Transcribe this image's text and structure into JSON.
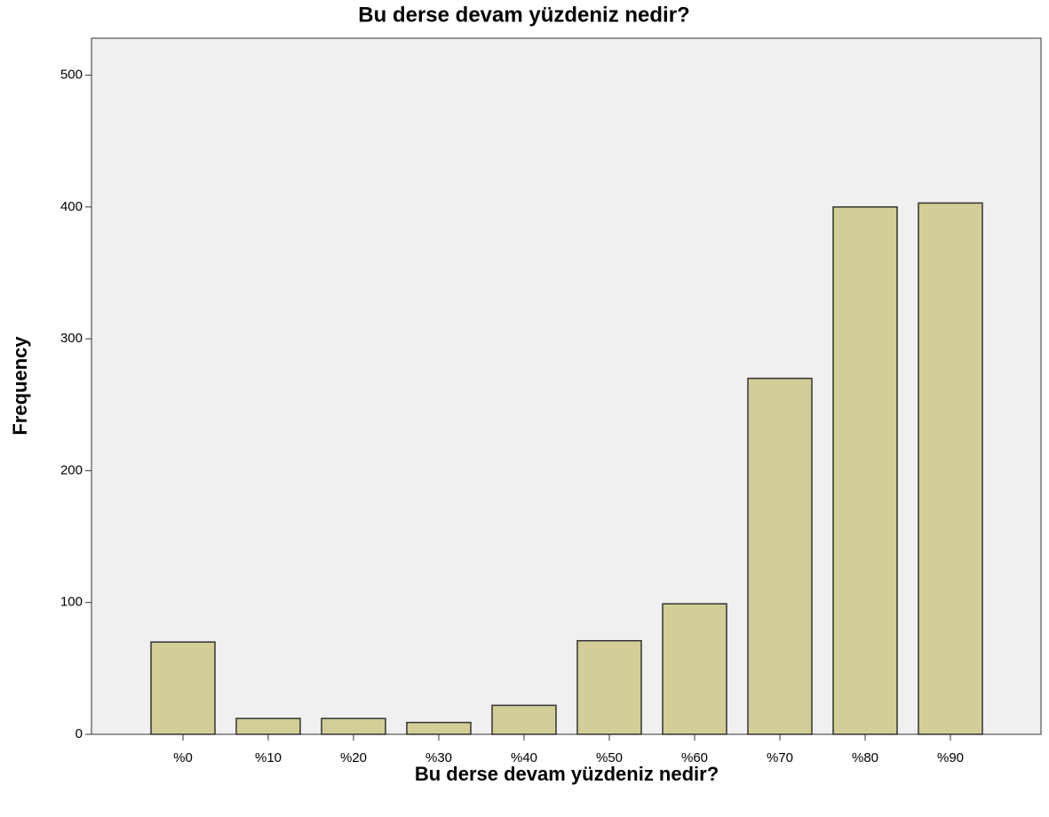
{
  "chart_data": {
    "type": "bar",
    "title": "Bu derse devam yüzdeniz nedir?",
    "x_label": "Bu derse devam yüzdeniz nedir?",
    "y_label": "Frequency",
    "categories": [
      "%0",
      "%10",
      "%20",
      "%30",
      "%40",
      "%50",
      "%60",
      "%70",
      "%80",
      "%90"
    ],
    "values": [
      70,
      12,
      12,
      9,
      22,
      71,
      99,
      270,
      400,
      403
    ],
    "color": "#d3ce97",
    "ylim": [
      0,
      528
    ],
    "yticks": [
      0,
      100,
      200,
      300,
      400,
      500
    ],
    "grid": false
  }
}
